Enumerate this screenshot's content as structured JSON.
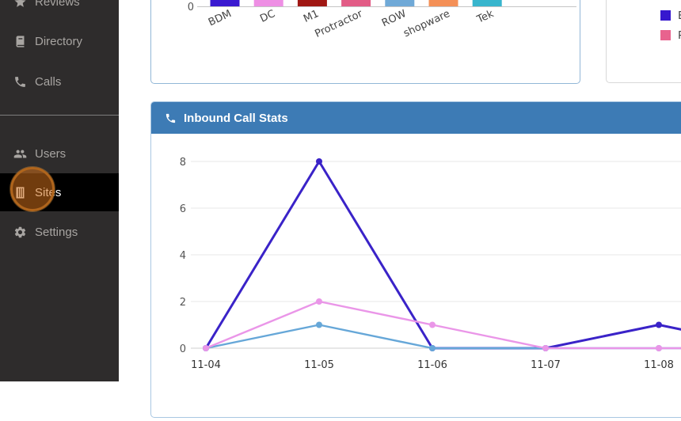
{
  "sidebar": {
    "items": [
      {
        "id": "reviews",
        "label": "Reviews",
        "icon": "star-icon"
      },
      {
        "id": "directory",
        "label": "Directory",
        "icon": "book-icon"
      },
      {
        "id": "calls",
        "label": "Calls",
        "icon": "phone-icon"
      },
      {
        "id": "users",
        "label": "Users",
        "icon": "users-icon"
      },
      {
        "id": "sites",
        "label": "Sites",
        "icon": "building-icon",
        "active": true
      },
      {
        "id": "settings",
        "label": "Settings",
        "icon": "gear-icon"
      }
    ],
    "colors": {
      "bg": "#2e2c2c",
      "text": "#a8a5a2",
      "active_bg": "#000000",
      "active_text": "#ffffff"
    }
  },
  "annotation": {
    "type": "click-highlight-circle",
    "target": "sites",
    "color": "#b0651c"
  },
  "inbound": {
    "title": "Inbound Call Stats",
    "icon": "phone-icon",
    "header_color": "#3d7bb5"
  },
  "chart_data": [
    {
      "id": "site-bar-chart",
      "type": "bar",
      "note": "chart cropped by viewport; only baseline and x-axis labels visible",
      "categories": [
        "BDM",
        "DC",
        "M1",
        "Protractor",
        "ROW",
        "shopware",
        "Tek"
      ],
      "bar_colors": [
        "#3a1ad0",
        "#ee8fe4",
        "#a01713",
        "#e25c86",
        "#70a9d7",
        "#f49057",
        "#38b5cd"
      ],
      "values": [
        null,
        null,
        null,
        null,
        null,
        null,
        null
      ],
      "visible_y_tick": "0",
      "xlabel": "",
      "ylabel": "",
      "grid": false
    },
    {
      "id": "cropped-legend",
      "type": "legend",
      "note": "legend labels truncated by viewport edge",
      "entries": [
        {
          "label": "B",
          "color": "#3618ce"
        },
        {
          "label": "P",
          "color": "#e8638e"
        }
      ]
    },
    {
      "id": "inbound-line-chart",
      "type": "line",
      "title": "Inbound Call Stats",
      "categories": [
        "11-04",
        "11-05",
        "11-06",
        "11-07",
        "11-08"
      ],
      "y_ticks": [
        0,
        2,
        4,
        6,
        8
      ],
      "ylim": [
        0,
        8
      ],
      "grid": true,
      "series": [
        {
          "name": "series-indigo",
          "color": "#3a23c8",
          "values": [
            0,
            8,
            0,
            0,
            1
          ],
          "next_offscreen": 0,
          "width": 3
        },
        {
          "name": "series-light-blue",
          "color": "#66a7d8",
          "values": [
            0,
            1,
            0,
            0,
            0
          ],
          "next_offscreen": 0,
          "width": 2.4
        },
        {
          "name": "series-pink",
          "color": "#ea96e8",
          "values": [
            0,
            2,
            1,
            0,
            0
          ],
          "next_offscreen": 0,
          "width": 2.4
        }
      ]
    }
  ]
}
